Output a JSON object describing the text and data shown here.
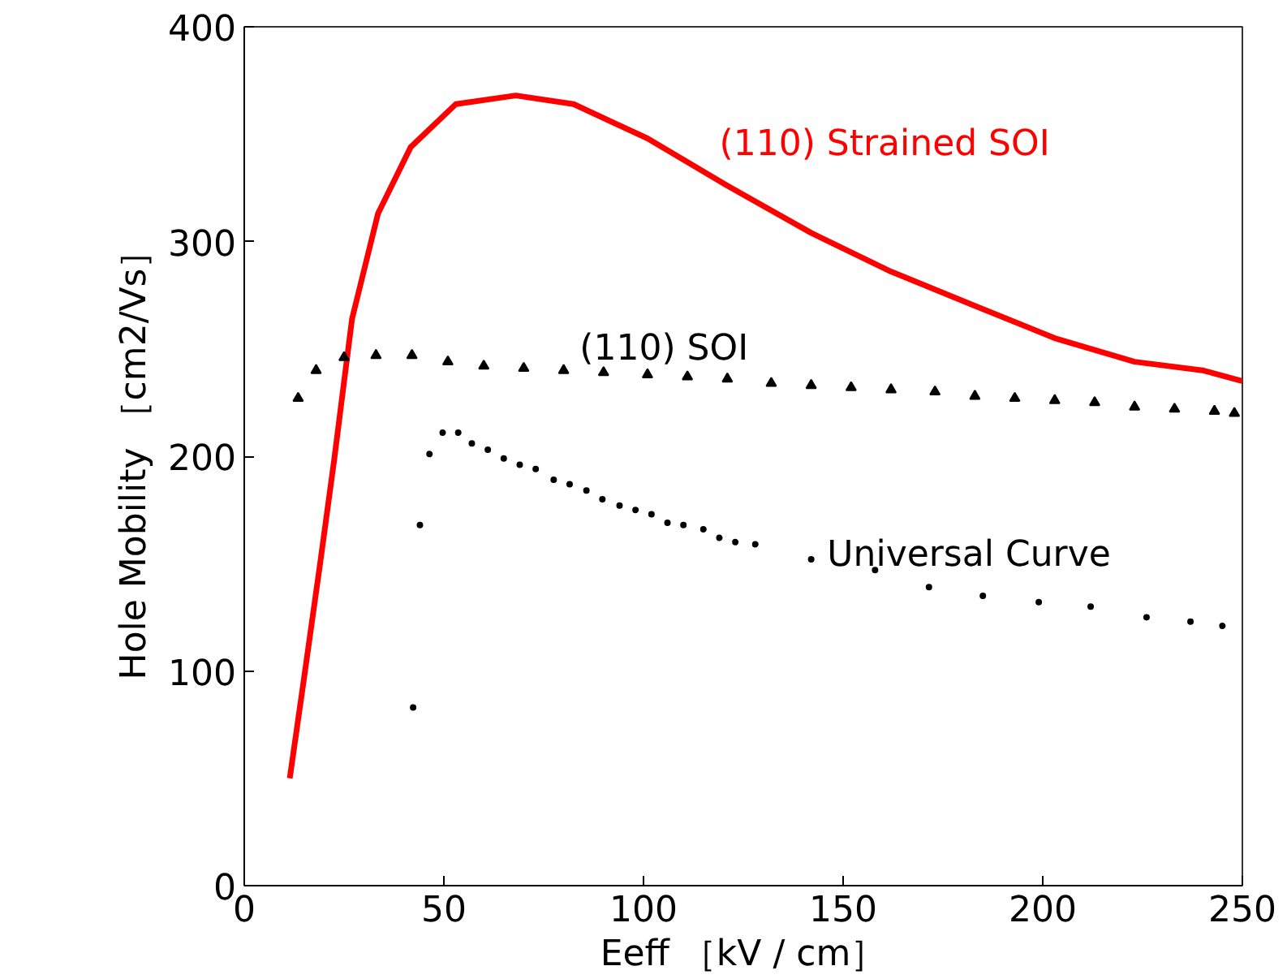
{
  "chart_data": {
    "type": "line",
    "xlabel": "Eeff ［kV / cm］",
    "ylabel": "Hole Mobility ［cm2/Vs］",
    "xlim": [
      0,
      250
    ],
    "ylim": [
      0,
      400
    ],
    "xticks": [
      0,
      50,
      100,
      150,
      200,
      250
    ],
    "yticks": [
      0,
      100,
      200,
      300,
      400
    ],
    "grid": false,
    "series": [
      {
        "name": "(110) Strained SOI",
        "color": "#ff0000",
        "marker": "none",
        "x": [
          11.4,
          15,
          19,
          22.5,
          27,
          33.5,
          41.7,
          53,
          68,
          82.5,
          101,
          121,
          142,
          162,
          183,
          203,
          223,
          240,
          250
        ],
        "values": [
          50,
          97,
          150,
          198,
          264,
          313,
          344,
          364,
          368,
          364,
          348,
          326,
          304,
          286,
          270,
          255,
          244,
          240,
          235
        ]
      },
      {
        "name": "(110) SOI",
        "type": "scatter",
        "color": "#000000",
        "marker": "triangle",
        "x": [
          13.5,
          18,
          25,
          33,
          42,
          51,
          60,
          70,
          80,
          90,
          101,
          111,
          121,
          132,
          142,
          152,
          162,
          173,
          183,
          193,
          203,
          213,
          223,
          233,
          243,
          248
        ],
        "values": [
          227,
          240,
          246,
          247,
          247,
          244,
          242,
          241,
          240,
          239,
          238,
          237,
          236,
          234,
          233,
          232,
          231,
          230,
          228,
          227,
          226,
          225,
          223,
          222,
          221,
          220
        ]
      },
      {
        "name": "Universal Curve",
        "type": "scatter",
        "color": "#000000",
        "marker": "circle",
        "x": [
          42.3,
          44,
          46.4,
          49.7,
          53.6,
          57,
          61,
          65,
          69,
          73,
          77.5,
          81.5,
          85.7,
          89.7,
          94,
          98,
          102,
          106,
          110,
          115,
          119,
          123,
          128,
          142,
          158,
          171.5,
          185,
          199,
          212,
          226,
          237,
          245
        ],
        "values": [
          83,
          168,
          201,
          211,
          211,
          206,
          203,
          199,
          196,
          194,
          189,
          187,
          184,
          180,
          177,
          175,
          173,
          169,
          168,
          166,
          162,
          160,
          159,
          152,
          147,
          139,
          135,
          132,
          130,
          125,
          123,
          121
        ]
      }
    ]
  }
}
